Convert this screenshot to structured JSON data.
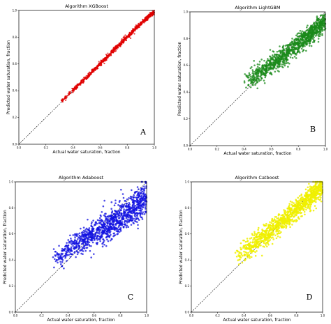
{
  "chart_data": [
    {
      "type": "scatter",
      "title": "Algorithm XGBoost",
      "xlabel": "Actual water saturation, fraction",
      "ylabel": "Predicted water saturation, fraction",
      "panel_label": "A",
      "xlim": [
        0,
        1
      ],
      "ylim": [
        0,
        1
      ],
      "xticks": [
        "0.0",
        "0.2",
        "0.4",
        "0.6",
        "0.8",
        "1.0"
      ],
      "yticks": [
        "0.0",
        "0.2",
        "0.4",
        "0.6",
        "0.8",
        "1.0"
      ],
      "reference_line": "y = x (dashed, black)",
      "marker_color": "#e00000",
      "grid": false,
      "x": [
        0.3,
        0.34,
        0.38,
        0.42,
        0.46,
        0.5,
        0.54,
        0.58,
        0.62,
        0.66,
        0.7,
        0.74,
        0.78,
        0.82,
        0.86,
        0.9,
        0.94,
        0.98,
        1.0
      ],
      "y": [
        0.31,
        0.345,
        0.385,
        0.42,
        0.465,
        0.5,
        0.545,
        0.58,
        0.625,
        0.66,
        0.705,
        0.74,
        0.785,
        0.82,
        0.865,
        0.9,
        0.94,
        0.975,
        0.985
      ]
    },
    {
      "type": "scatter",
      "title": "Algorithm LightGBM",
      "xlabel": "Actual water saturation, fraction",
      "ylabel": "Predicted water saturation, fraction",
      "panel_label": "B",
      "xlim": [
        0,
        1
      ],
      "ylim": [
        0,
        1
      ],
      "xticks": [
        "0.0",
        "0.2",
        "0.4",
        "0.6",
        "0.8",
        "1.0"
      ],
      "yticks": [
        "0.0",
        "0.2",
        "0.4",
        "0.6",
        "0.8",
        "1.0"
      ],
      "reference_line": "y = x (dashed, black)",
      "marker_color": "#1a8a1a",
      "grid": false,
      "x": [
        0.4,
        0.45,
        0.5,
        0.55,
        0.6,
        0.65,
        0.7,
        0.75,
        0.8,
        0.85,
        0.9,
        0.95,
        1.0
      ],
      "y": [
        0.47,
        0.5,
        0.53,
        0.57,
        0.61,
        0.64,
        0.68,
        0.72,
        0.76,
        0.8,
        0.84,
        0.89,
        0.94
      ]
    },
    {
      "type": "scatter",
      "title": "Algorithm Adaboost",
      "xlabel": "Actual water saturation, fraction",
      "ylabel": "Predicted water saturation, fraction",
      "panel_label": "C",
      "xlim": [
        0,
        1
      ],
      "ylim": [
        0,
        1
      ],
      "xticks": [
        "0.0",
        "0.2",
        "0.4",
        "0.6",
        "0.8",
        "1.0"
      ],
      "yticks": [
        "0.0",
        "0.2",
        "0.4",
        "0.6",
        "0.8",
        "1.0"
      ],
      "reference_line": "y = x (dashed, black)",
      "marker_color": "#1010e0",
      "grid": false,
      "x": [
        0.3,
        0.35,
        0.4,
        0.45,
        0.5,
        0.55,
        0.6,
        0.65,
        0.7,
        0.75,
        0.8,
        0.85,
        0.9,
        0.95,
        1.0
      ],
      "y": [
        0.41,
        0.44,
        0.48,
        0.51,
        0.54,
        0.57,
        0.6,
        0.63,
        0.66,
        0.69,
        0.72,
        0.76,
        0.8,
        0.84,
        0.88
      ]
    },
    {
      "type": "scatter",
      "title": "Algorithm Catboost",
      "xlabel": "Actual water saturation, fraction",
      "ylabel": "Predicted water saturation, fraction",
      "panel_label": "D",
      "xlim": [
        0,
        1
      ],
      "ylim": [
        0,
        1
      ],
      "xticks": [
        "0.0",
        "0.2",
        "0.4",
        "0.6",
        "0.8",
        "1.0"
      ],
      "yticks": [
        "0.0",
        "0.2",
        "0.4",
        "0.6",
        "0.8",
        "1.0"
      ],
      "reference_line": "y = x (dashed, black)",
      "marker_color": "#f0f000",
      "grid": false,
      "x": [
        0.35,
        0.4,
        0.45,
        0.5,
        0.55,
        0.6,
        0.65,
        0.7,
        0.75,
        0.8,
        0.85,
        0.9,
        0.95,
        1.0
      ],
      "y": [
        0.42,
        0.46,
        0.5,
        0.54,
        0.58,
        0.62,
        0.66,
        0.7,
        0.74,
        0.79,
        0.83,
        0.87,
        0.92,
        0.96
      ]
    }
  ]
}
